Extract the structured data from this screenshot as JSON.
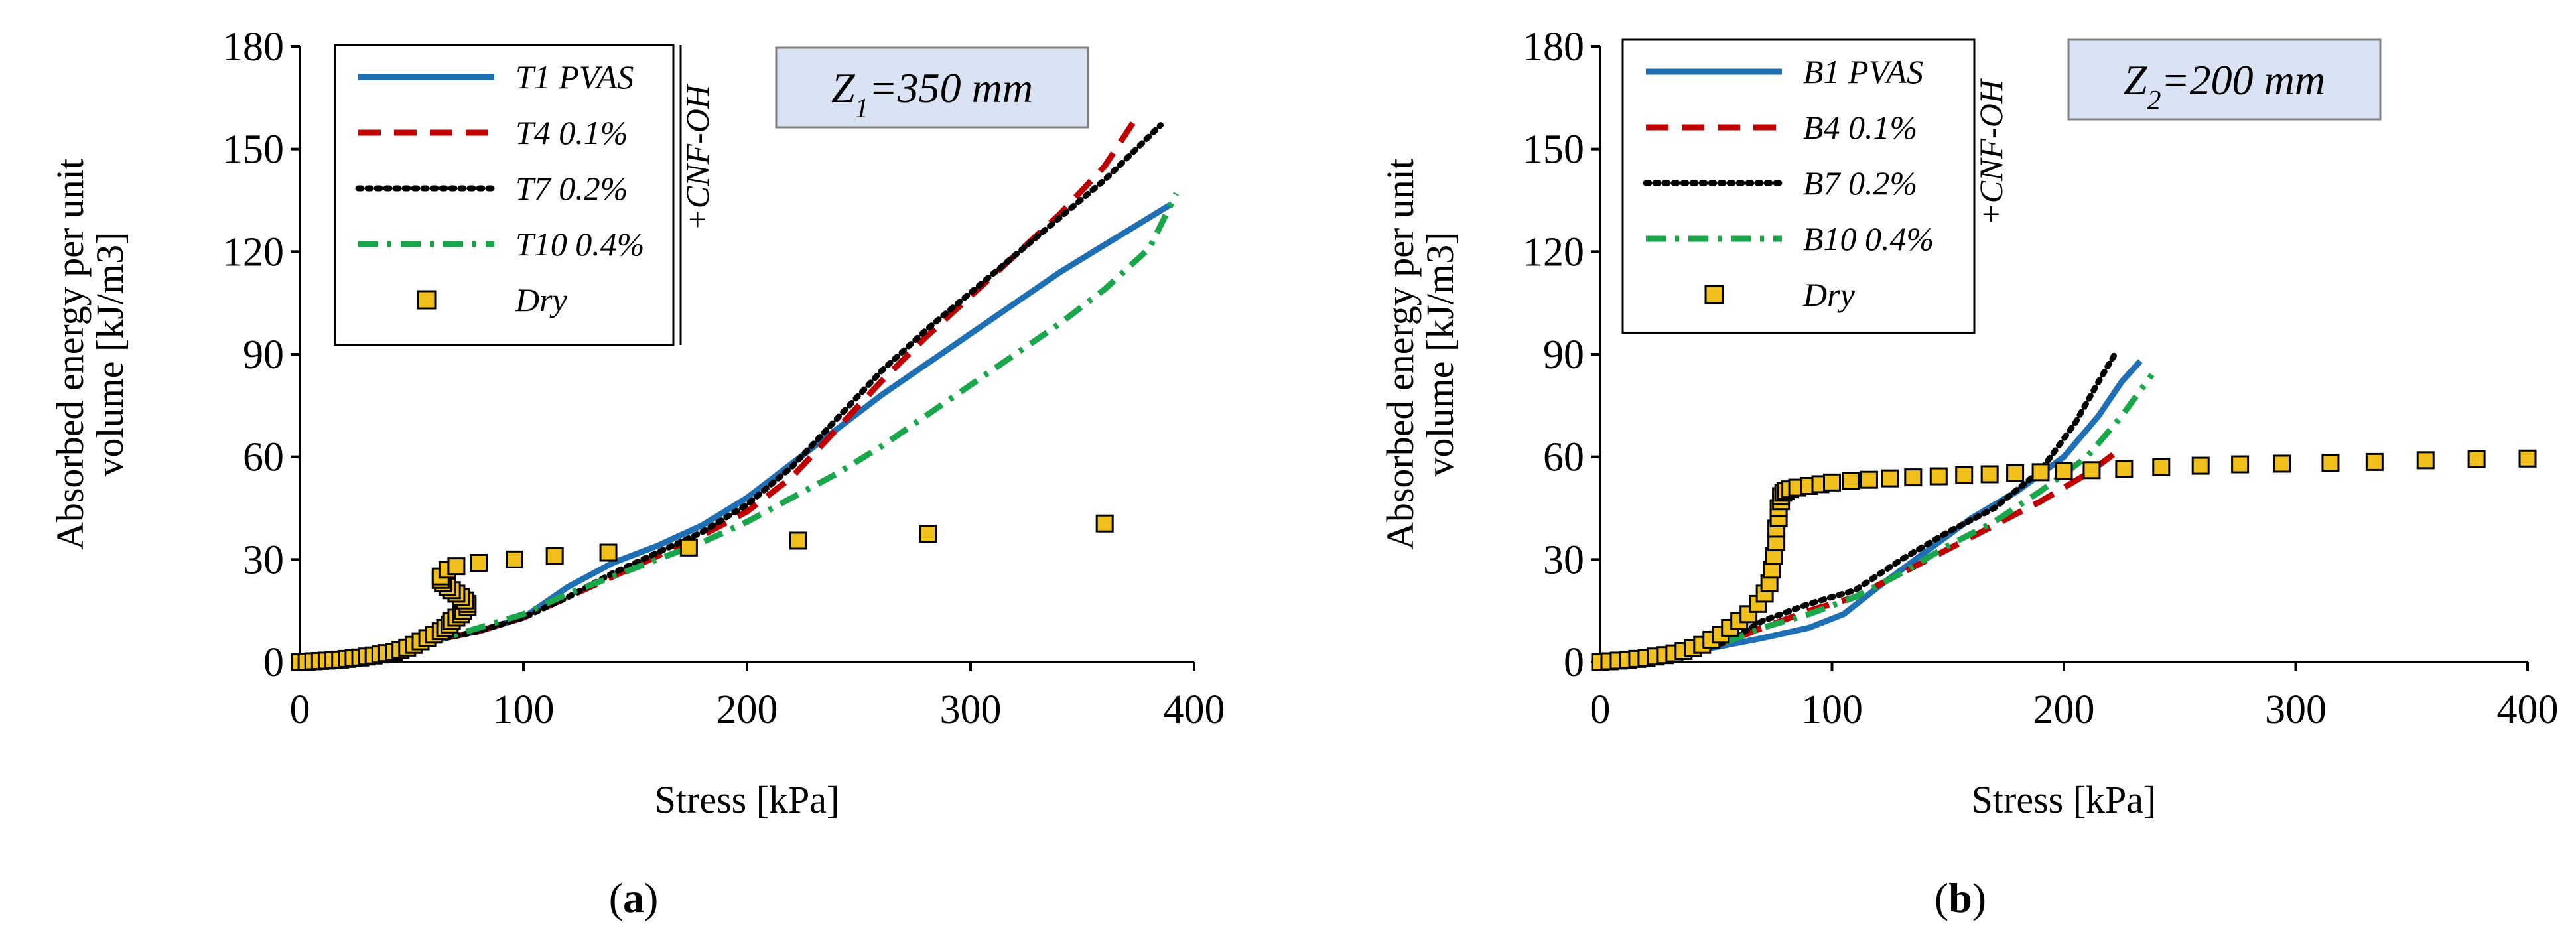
{
  "figure": {
    "panels": [
      {
        "id": "a",
        "panel_label": "(a)",
        "annotation": {
          "prefix": "Z",
          "subscript": "1",
          "suffix": "=350 mm"
        },
        "legend_group_label": "+CNF-OH"
      },
      {
        "id": "b",
        "panel_label": "(b)",
        "annotation": {
          "prefix": "Z",
          "subscript": "2",
          "suffix": "=200 mm"
        },
        "legend_group_label": "+CNF-OH"
      }
    ]
  },
  "colors": {
    "pvas": "#1f6fb4",
    "cnf01": "#c00000",
    "cnf02": "#000000",
    "cnf04": "#1aa64a",
    "dry_fill": "#f2c01c",
    "dry_edge": "#000000",
    "annotation_fill": "#dae3f3"
  },
  "chart_data": [
    {
      "type": "line",
      "title": "(a)",
      "xlabel": "Stress [kPa]",
      "ylabel": "Absorbed energy per unit volume [kJ/m3]",
      "ylabel_lines": [
        "Absorbed energy per unit",
        "volume [kJ/m3]"
      ],
      "xlim": [
        0,
        400
      ],
      "ylim": [
        0,
        180
      ],
      "xticks": [
        0,
        100,
        200,
        300,
        400
      ],
      "yticks": [
        0,
        30,
        60,
        90,
        120,
        150,
        180
      ],
      "legend_position": "top-left",
      "series": [
        {
          "name": "T1 PVAS",
          "style": "solid",
          "color_key": "pvas",
          "x": [
            0,
            20,
            40,
            55,
            65,
            80,
            100,
            120,
            140,
            160,
            180,
            200,
            220,
            240,
            260,
            280,
            300,
            320,
            340,
            360,
            380,
            390
          ],
          "y": [
            0,
            1,
            3,
            5,
            7,
            9,
            13,
            22,
            29,
            34,
            40,
            48,
            58,
            68,
            78,
            87,
            96,
            105,
            114,
            122,
            130,
            134
          ]
        },
        {
          "name": "T4 0.1%",
          "style": "dashed",
          "color_key": "cnf01",
          "x": [
            0,
            20,
            40,
            55,
            65,
            80,
            100,
            120,
            140,
            160,
            180,
            200,
            220,
            240,
            260,
            280,
            300,
            320,
            340,
            360,
            375
          ],
          "y": [
            0,
            1,
            3,
            5,
            7,
            9,
            13,
            19,
            25,
            31,
            37,
            44,
            54,
            68,
            82,
            95,
            107,
            119,
            131,
            145,
            160
          ]
        },
        {
          "name": "T7 0.2%",
          "style": "dotted",
          "color_key": "cnf02",
          "x": [
            0,
            20,
            40,
            55,
            65,
            80,
            100,
            120,
            140,
            160,
            180,
            200,
            220,
            240,
            260,
            280,
            300,
            320,
            340,
            360,
            385
          ],
          "y": [
            0,
            1,
            3,
            5,
            7,
            9,
            13,
            19,
            26,
            32,
            38,
            46,
            57,
            71,
            85,
            97,
            108,
            119,
            130,
            141,
            157
          ]
        },
        {
          "name": "T10 0.4%",
          "style": "dashdot",
          "color_key": "cnf04",
          "x": [
            0,
            20,
            40,
            55,
            65,
            80,
            100,
            120,
            140,
            160,
            180,
            200,
            220,
            240,
            260,
            280,
            300,
            320,
            340,
            360,
            380,
            392
          ],
          "y": [
            0,
            1,
            3,
            5,
            7,
            10,
            14,
            20,
            25,
            30,
            35,
            41,
            48,
            55,
            63,
            72,
            81,
            90,
            99,
            109,
            121,
            137
          ]
        }
      ],
      "markers": {
        "name": "Dry",
        "style": "square",
        "color_key": "dry_fill",
        "x": [
          0,
          3,
          6,
          9,
          12,
          15,
          18,
          21,
          24,
          27,
          30,
          33,
          36,
          39,
          42,
          45,
          48,
          51,
          54,
          57,
          60,
          63,
          65,
          67,
          68,
          70,
          72,
          73,
          75,
          75,
          74,
          72,
          70,
          68,
          66,
          64,
          63,
          63,
          66,
          70,
          80,
          96,
          114,
          138,
          174,
          223,
          281,
          360
        ],
        "y": [
          0,
          0.1,
          0.2,
          0.3,
          0.4,
          0.5,
          0.7,
          0.9,
          1.1,
          1.3,
          1.6,
          1.9,
          2.2,
          2.6,
          3,
          3.5,
          4.2,
          5,
          6,
          7,
          8,
          9,
          10,
          11,
          12,
          13,
          14,
          15,
          16,
          17,
          18,
          19,
          20,
          21,
          22,
          23,
          24,
          25,
          27,
          28,
          29,
          30,
          31,
          32,
          33.5,
          35.5,
          37.5,
          40.5
        ]
      }
    },
    {
      "type": "line",
      "title": "(b)",
      "xlabel": "Stress [kPa]",
      "ylabel": "Absorbed energy per unit volume [kJ/m3]",
      "ylabel_lines": [
        "Absorbed energy per unit",
        "volume [kJ/m3]"
      ],
      "xlim": [
        0,
        400
      ],
      "ylim": [
        0,
        180
      ],
      "xticks": [
        0,
        100,
        200,
        300,
        400
      ],
      "yticks": [
        0,
        30,
        60,
        90,
        120,
        150,
        180
      ],
      "legend_position": "top-left",
      "series": [
        {
          "name": "B1 PVAS",
          "style": "solid",
          "color_key": "pvas",
          "x": [
            0,
            20,
            40,
            55,
            70,
            90,
            105,
            120,
            140,
            160,
            180,
            200,
            215,
            225,
            233
          ],
          "y": [
            0,
            1,
            3,
            5,
            7,
            10,
            14,
            22,
            32,
            42,
            50,
            60,
            72,
            82,
            88
          ]
        },
        {
          "name": "B4 0.1%",
          "style": "dashed",
          "color_key": "cnf01",
          "x": [
            0,
            20,
            40,
            55,
            70,
            90,
            110,
            130,
            150,
            170,
            190,
            210,
            222
          ],
          "y": [
            0,
            1,
            3,
            6,
            10,
            15,
            19,
            26,
            33,
            40,
            47,
            55,
            61
          ]
        },
        {
          "name": "B7 0.2%",
          "style": "dotted",
          "color_key": "cnf02",
          "x": [
            0,
            20,
            40,
            55,
            70,
            90,
            110,
            130,
            150,
            170,
            190,
            205,
            215,
            222
          ],
          "y": [
            0,
            1,
            3,
            6,
            12,
            17,
            21,
            30,
            38,
            45,
            56,
            70,
            82,
            90
          ]
        },
        {
          "name": "B10 0.4%",
          "style": "dashdot",
          "color_key": "cnf04",
          "x": [
            0,
            20,
            40,
            55,
            70,
            90,
            110,
            130,
            150,
            170,
            190,
            210,
            225,
            238
          ],
          "y": [
            0,
            1,
            3,
            6,
            10,
            14,
            19,
            26,
            34,
            41,
            50,
            60,
            72,
            84
          ]
        }
      ],
      "markers": {
        "name": "Dry",
        "style": "square",
        "color_key": "dry_fill",
        "x": [
          0,
          4,
          8,
          12,
          16,
          20,
          24,
          28,
          32,
          36,
          40,
          44,
          48,
          52,
          56,
          60,
          64,
          68,
          71,
          73,
          74,
          75,
          76,
          76,
          77,
          77,
          78,
          78,
          79,
          80,
          82,
          85,
          90,
          95,
          100,
          108,
          116,
          125,
          135,
          146,
          157,
          168,
          179,
          190,
          200,
          212,
          226,
          242,
          259,
          276,
          294,
          315,
          334,
          356,
          378,
          400
        ],
        "y": [
          0,
          0.2,
          0.4,
          0.6,
          0.9,
          1.2,
          1.6,
          2,
          2.5,
          3.2,
          4,
          5,
          6.5,
          8,
          10,
          12,
          14,
          17,
          20,
          23,
          27,
          31,
          35,
          39,
          42,
          45,
          47,
          48.5,
          49.5,
          50,
          50.5,
          51,
          51.5,
          52,
          52.5,
          53,
          53.3,
          53.7,
          54,
          54.3,
          54.6,
          54.9,
          55.2,
          55.5,
          55.8,
          56.1,
          56.5,
          57,
          57.4,
          57.8,
          58,
          58.2,
          58.5,
          59,
          59.3,
          59.5
        ]
      }
    }
  ]
}
